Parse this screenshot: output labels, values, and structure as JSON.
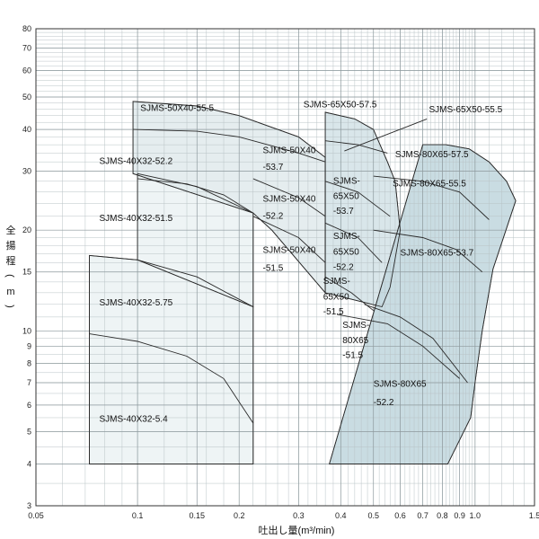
{
  "chart_data": {
    "type": "area",
    "title": "",
    "xlabel": "吐出し量(m³/min)",
    "ylabel": "全揚程(m)",
    "xscale": "log",
    "yscale": "log",
    "xlim": [
      0.05,
      1.5
    ],
    "ylim": [
      3,
      80
    ],
    "x_ticks": [
      0.05,
      0.1,
      0.15,
      0.2,
      0.3,
      0.4,
      0.5,
      0.6,
      0.7,
      0.8,
      0.9,
      1.0,
      1.5
    ],
    "x_tick_labels": [
      "0.05",
      "0.1",
      "0.15",
      "0.2",
      "0.3",
      "0.4",
      "0.5",
      "0.6",
      "0.7",
      "0.8",
      "0.9",
      "1.0",
      "1.5"
    ],
    "y_ticks": [
      3,
      4,
      5,
      6,
      7,
      8,
      9,
      10,
      15,
      20,
      30,
      40,
      50,
      60,
      70,
      80
    ],
    "y_tick_labels": [
      "3",
      "4",
      "5",
      "6",
      "7",
      "8",
      "9",
      "10",
      "15",
      "20",
      "30",
      "40",
      "50",
      "60",
      "70",
      "80"
    ],
    "grid": true,
    "regions": [
      {
        "label": "SJMS-40X32-5.75",
        "fill": "#edf3f4",
        "polygon": [
          [
            0.072,
            4
          ],
          [
            0.22,
            4
          ],
          [
            0.22,
            11.8
          ],
          [
            0.15,
            14.5
          ],
          [
            0.1,
            16.3
          ],
          [
            0.072,
            16.8
          ]
        ],
        "curve": []
      },
      {
        "label": "SJMS-40X32-5.4",
        "fill": "#edf3f4",
        "polygon": [],
        "curve": [
          [
            0.072,
            9.8
          ],
          [
            0.1,
            9.3
          ],
          [
            0.14,
            8.4
          ],
          [
            0.18,
            7.2
          ],
          [
            0.22,
            5.3
          ]
        ]
      },
      {
        "label": "SJMS-40X32-52.2",
        "fill": "#edf3f4",
        "polygon": [
          [
            0.1,
            16.3
          ],
          [
            0.22,
            11.8
          ],
          [
            0.22,
            22.5
          ],
          [
            0.15,
            27
          ],
          [
            0.1,
            29.5
          ]
        ],
        "curve": []
      },
      {
        "label": "SJMS-40X32-51.5",
        "fill": "#edf3f4",
        "polygon": [],
        "curve": [
          [
            0.1,
            28.5
          ],
          [
            0.14,
            27.5
          ],
          [
            0.18,
            25.5
          ],
          [
            0.22,
            22.5
          ]
        ]
      },
      {
        "label": "SJMS-50X40-55.5",
        "fill": "#e3ecee",
        "polygon": [
          [
            0.097,
            29.5
          ],
          [
            0.22,
            22.5
          ],
          [
            0.25,
            20
          ],
          [
            0.36,
            13
          ],
          [
            0.36,
            33
          ],
          [
            0.3,
            38
          ],
          [
            0.2,
            44
          ],
          [
            0.15,
            47
          ],
          [
            0.097,
            48.5
          ]
        ],
        "curve": []
      },
      {
        "label": "SJMS-50X40-53.7",
        "fill": "#e3ecee",
        "polygon": [],
        "curve": [
          [
            0.097,
            40
          ],
          [
            0.15,
            39.5
          ],
          [
            0.2,
            38
          ],
          [
            0.3,
            34
          ],
          [
            0.36,
            32
          ]
        ]
      },
      {
        "label": "SJMS-50X40-52.2",
        "fill": "#e3ecee",
        "polygon": [],
        "curve": [
          [
            0.22,
            28.5
          ],
          [
            0.3,
            25
          ],
          [
            0.36,
            22
          ]
        ]
      },
      {
        "label": "SJMS-50X40-51.5",
        "fill": "#e3ecee",
        "polygon": [],
        "curve": [
          [
            0.22,
            22
          ],
          [
            0.3,
            19
          ],
          [
            0.36,
            16
          ]
        ]
      },
      {
        "label": "SJMS-65X50-57.5",
        "fill": "#d6e4e8",
        "polygon": [
          [
            0.36,
            13
          ],
          [
            0.53,
            11.8
          ],
          [
            0.56,
            13.5
          ],
          [
            0.6,
            20
          ],
          [
            0.58,
            28
          ],
          [
            0.55,
            32
          ],
          [
            0.5,
            40
          ],
          [
            0.44,
            43
          ],
          [
            0.36,
            45
          ]
        ],
        "curve": []
      },
      {
        "label": "SJMS-65X50-55.5",
        "fill": "#d6e4e8",
        "polygon": [],
        "curve": [
          [
            0.36,
            37
          ],
          [
            0.45,
            36
          ],
          [
            0.55,
            34
          ]
        ]
      },
      {
        "label": "SJMS-65X50-53.7",
        "fill": "#d6e4e8",
        "polygon": [],
        "curve": [
          [
            0.36,
            28
          ],
          [
            0.45,
            26
          ],
          [
            0.56,
            22
          ]
        ]
      },
      {
        "label": "SJMS-65X50-52.2",
        "fill": "#d6e4e8",
        "polygon": [],
        "curve": [
          [
            0.36,
            21
          ],
          [
            0.45,
            19
          ],
          [
            0.53,
            16
          ]
        ]
      },
      {
        "label": "SJMS-65X50-51.5",
        "fill": "#d6e4e8",
        "polygon": [],
        "curve": [
          [
            0.36,
            14.5
          ],
          [
            0.43,
            13
          ],
          [
            0.5,
            11.5
          ]
        ]
      },
      {
        "label": "SJMS-80X65-57.5",
        "fill": "#c4d9e0",
        "polygon": [
          [
            0.37,
            4
          ],
          [
            0.83,
            4
          ],
          [
            0.97,
            5.5
          ],
          [
            1.0,
            7
          ],
          [
            1.05,
            10
          ],
          [
            1.13,
            15.3
          ],
          [
            1.32,
            24.5
          ],
          [
            1.24,
            28
          ],
          [
            1.1,
            32
          ],
          [
            0.96,
            35
          ],
          [
            0.82,
            36
          ],
          [
            0.7,
            36
          ]
        ],
        "curve": []
      },
      {
        "label": "SJMS-80X65-55.5",
        "fill": "#c4d9e0",
        "polygon": [],
        "curve": [
          [
            0.5,
            29
          ],
          [
            0.7,
            28
          ],
          [
            0.9,
            26
          ],
          [
            1.1,
            21.5
          ]
        ]
      },
      {
        "label": "SJMS-80X65-53.7",
        "fill": "#c4d9e0",
        "polygon": [],
        "curve": [
          [
            0.5,
            20
          ],
          [
            0.7,
            19
          ],
          [
            0.88,
            17.5
          ],
          [
            1.05,
            15
          ]
        ]
      },
      {
        "label": "SJMS-80X65-51.5",
        "fill": "#c4d9e0",
        "polygon": [],
        "curve": [
          [
            0.47,
            12
          ],
          [
            0.6,
            11
          ],
          [
            0.75,
            9.5
          ],
          [
            0.95,
            7
          ]
        ]
      },
      {
        "label": "SJMS-80X65-52.2",
        "fill": "#c4d9e0",
        "polygon": [],
        "curve": [
          [
            0.39,
            11.2
          ],
          [
            0.55,
            10.5
          ],
          [
            0.7,
            9
          ],
          [
            0.9,
            7.2
          ]
        ]
      }
    ]
  },
  "labels": [
    {
      "text": "SJMS-50X40-55.5",
      "x": 0.102,
      "y": 45.5
    },
    {
      "text": "SJMS-65X50-57.5",
      "x": 0.31,
      "y": 46.5
    },
    {
      "text": "SJMS-65X50-55.5",
      "x": 0.73,
      "y": 45
    },
    {
      "text": "SJMS-40X32-52.2",
      "x": 0.077,
      "y": 31.5
    },
    {
      "text": "SJMS-50X40",
      "x": 0.235,
      "y": 34
    },
    {
      "text": "-53.7",
      "x": 0.235,
      "y": 30.3
    },
    {
      "text": "SJMS-80X65-57.5",
      "x": 0.58,
      "y": 33
    },
    {
      "text": "SJMS-80X65-55.5",
      "x": 0.57,
      "y": 27
    },
    {
      "text": "SJMS-",
      "x": 0.38,
      "y": 27.5
    },
    {
      "text": "65X50",
      "x": 0.38,
      "y": 24.8
    },
    {
      "text": "-53.7",
      "x": 0.38,
      "y": 22.4
    },
    {
      "text": "SJMS-50X40",
      "x": 0.235,
      "y": 24.3
    },
    {
      "text": "-52.2",
      "x": 0.235,
      "y": 21.6
    },
    {
      "text": "SJMS-40X32-51.5",
      "x": 0.077,
      "y": 21.3
    },
    {
      "text": "SJMS-",
      "x": 0.38,
      "y": 18.8
    },
    {
      "text": "65X50",
      "x": 0.38,
      "y": 16.9
    },
    {
      "text": "-52.2",
      "x": 0.38,
      "y": 15.2
    },
    {
      "text": "SJMS-50X40",
      "x": 0.235,
      "y": 17.1
    },
    {
      "text": "-51.5",
      "x": 0.235,
      "y": 15.1
    },
    {
      "text": "SJMS-80X65-53.7",
      "x": 0.6,
      "y": 16.8
    },
    {
      "text": "SJMS-",
      "x": 0.355,
      "y": 13.8
    },
    {
      "text": "65X50",
      "x": 0.355,
      "y": 12.4
    },
    {
      "text": "-51.5",
      "x": 0.355,
      "y": 11.2
    },
    {
      "text": "SJMS-40X32-5.75",
      "x": 0.077,
      "y": 11.9
    },
    {
      "text": "SJMS-",
      "x": 0.405,
      "y": 10.2
    },
    {
      "text": "80X65",
      "x": 0.405,
      "y": 9.2
    },
    {
      "text": "-51.5",
      "x": 0.405,
      "y": 8.3
    },
    {
      "text": "SJMS-80X65",
      "x": 0.5,
      "y": 6.8
    },
    {
      "text": "-52.2",
      "x": 0.5,
      "y": 6.0
    },
    {
      "text": "SJMS-40X32-5.4",
      "x": 0.077,
      "y": 5.35
    }
  ],
  "leader": {
    "from": [
      0.72,
      43
    ],
    "to": [
      0.41,
      34.5
    ]
  }
}
